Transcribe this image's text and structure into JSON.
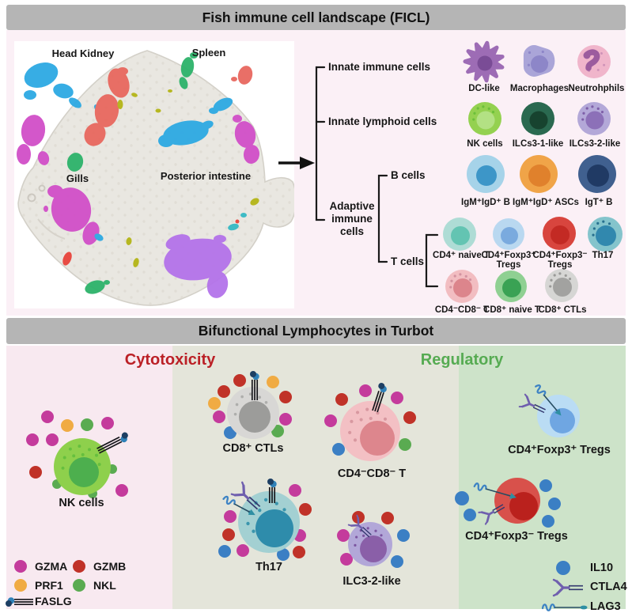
{
  "figure": {
    "top_title": "Fish immune cell landscape (FICL)",
    "bottom_title": "Bifunctional Lymphocytes in Turbot",
    "ficl_bg": "#fbf0f6"
  },
  "fish_map": {
    "organ_labels": [
      "Head Kidney",
      "Spleen",
      "Gills",
      "Posterior intestine"
    ],
    "umap_palette": {
      "blue": "#2da9e3",
      "magenta": "#d14fc8",
      "salmon": "#e8685f",
      "green": "#2db36a",
      "olive": "#b4b517",
      "violet": "#b473ea",
      "teal": "#35b9c4",
      "red": "#e8443c"
    },
    "fish_body_color": "#e9e7e1",
    "fish_outline_color": "#d3d0c8"
  },
  "tree": {
    "level1": [
      "Innate immune cells",
      "Innate lymphoid cells",
      "Adaptive\nimmune\ncells"
    ],
    "level2": [
      "B cells",
      "T cells"
    ]
  },
  "cell_types": [
    {
      "label": "DC-like",
      "body": "#9d6cb5",
      "nucleus": "#7a4c96"
    },
    {
      "label": "Macrophages",
      "body": "#aaa5d8",
      "nucleus": "#8d86c8"
    },
    {
      "label": "Neutrohphils",
      "body": "#f0b5cb",
      "nucleus": "#9c5c9e"
    },
    {
      "label": "NK cells",
      "body": "#94d150",
      "nucleus": "#b3e184"
    },
    {
      "label": "ILCs3-1-like",
      "body": "#2a6950",
      "nucleus": "#17432f"
    },
    {
      "label": "ILCs3-2-like",
      "body": "#b3a8d8",
      "nucleus": "#8c70b8"
    },
    {
      "label": "IgM⁺IgD⁺ B",
      "body": "#a6d3e9",
      "nucleus": "#3d96c8"
    },
    {
      "label": "IgM⁺IgD⁺ ASCs",
      "body": "#f0a448",
      "nucleus": "#e0812c"
    },
    {
      "label": "IgT⁺ B",
      "body": "#40608f",
      "nucleus": "#203a64"
    },
    {
      "label": "CD4⁺ naive T",
      "body": "#aedcd5",
      "nucleus": "#63c4b2"
    },
    {
      "label": "CD4⁺Foxp3⁺\nTregs",
      "body": "#b9d8f0",
      "nucleus": "#7aaade"
    },
    {
      "label": "CD4⁺Foxp3⁻\nTregs",
      "body": "#d8453e",
      "nucleus": "#c32a24"
    },
    {
      "label": "Th17",
      "body": "#84c4cc",
      "nucleus": "#3188ae"
    },
    {
      "label": "CD4⁻CD8⁻ T",
      "body": "#f2bdc1",
      "nucleus": "#dc858c"
    },
    {
      "label": "CD8⁺ naive T",
      "body": "#8fd092",
      "nucleus": "#3aa254"
    },
    {
      "label": "CD8⁺ CTLs",
      "body": "#d6d6d4",
      "nucleus": "#a2a2a0"
    }
  ],
  "panels": {
    "cytotoxicity": {
      "heading": "Cytotoxicity",
      "text_color": "#bb2026",
      "bg": "#f8e9f0",
      "legend": [
        {
          "label": "GZMA",
          "color": "#c43b9c"
        },
        {
          "label": "GZMB",
          "color": "#c03228"
        },
        {
          "label": "PRF1",
          "color": "#f0ab43"
        },
        {
          "label": "NKL",
          "color": "#5aab51"
        },
        {
          "label": "FASLG",
          "symbol": "faslg"
        }
      ]
    },
    "middle": {
      "bg": "#e4e5da"
    },
    "regulatory": {
      "heading": "Regulatory",
      "text_color": "#56ab52",
      "bg": "#cde3c9",
      "legend": [
        {
          "label": "IL10",
          "color": "#3b7fc4"
        },
        {
          "label": "CTLA4",
          "symbol": "ctla4"
        },
        {
          "label": "LAG3",
          "symbol": "lag3"
        }
      ]
    }
  },
  "molecule_colors": {
    "GZMA": "#c43b9c",
    "GZMB": "#c03228",
    "PRF1": "#f0ab43",
    "NKL": "#5aab51",
    "IL10": "#3b7fc4"
  },
  "bottom_cells": [
    {
      "label": "NK cells",
      "body": "#8ed04c",
      "nucleus": "#4daf4e"
    },
    {
      "label": "CD8⁺ CTLs",
      "body": "#d8d7d5",
      "nucleus": "#9c9c9a"
    },
    {
      "label": "CD4⁻CD8⁻ T",
      "body": "#f3c0c4",
      "nucleus": "#dd868d"
    },
    {
      "label": "Th17",
      "body": "#a3d0d2",
      "nucleus": "#2e8cab"
    },
    {
      "label": "ILC3-2-like",
      "body": "#b2a7d8",
      "nucleus": "#8a5fa8"
    },
    {
      "label": "CD4⁺Foxp3⁺ Tregs",
      "body": "#badcf4",
      "nucleus": "#6fa6e2"
    },
    {
      "label": "CD4⁺Foxp3⁻ Tregs",
      "body": "#d8514b",
      "nucleus": "#ba211d"
    }
  ],
  "symbol_colors": {
    "faslg_cap_light": "#2f81b8",
    "faslg_cap_dark": "#1d3f63",
    "faslg_line": "#17171c",
    "ctla4_purple": "#6f5fae",
    "ctla4_line": "#33386e",
    "lag3_squiggle": "#3d83c4",
    "lag3_line": "#274d62",
    "lag3_tip": "#2e8fa3"
  }
}
